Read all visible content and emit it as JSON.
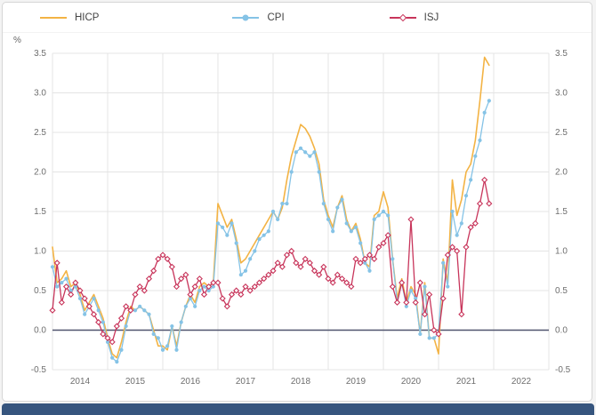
{
  "panel": {
    "background": "#ffffff",
    "border_color": "#d6d6d6",
    "bottom_bar_color": "#36557e"
  },
  "legend": {
    "items": [
      {
        "label": "HICP",
        "color": "#f3b344",
        "marker": "line"
      },
      {
        "label": "CPI",
        "color": "#85c3e6",
        "marker": "circle"
      },
      {
        "label": "ISJ",
        "color": "#c8355b",
        "marker": "diamond"
      }
    ]
  },
  "chart_data": {
    "type": "line",
    "title": "",
    "xlabel": "",
    "ylabel": "%",
    "ylim": [
      -0.5,
      3.5
    ],
    "y_ticks": [
      3.5,
      3.0,
      2.5,
      2.0,
      1.5,
      1.0,
      0.5,
      0.0,
      -0.5
    ],
    "x_tick_labels": [
      "2014",
      "2015",
      "2016",
      "2017",
      "2018",
      "2019",
      "2020",
      "2021",
      "2022"
    ],
    "grid": true,
    "legend_position": "top",
    "zero_line_color": "#50546e",
    "grid_color": "#e4e4e4",
    "axis_text_color": "#6e6e6e",
    "months": [
      "2014-01",
      "2014-02",
      "2014-03",
      "2014-04",
      "2014-05",
      "2014-06",
      "2014-07",
      "2014-08",
      "2014-09",
      "2014-10",
      "2014-11",
      "2014-12",
      "2015-01",
      "2015-02",
      "2015-03",
      "2015-04",
      "2015-05",
      "2015-06",
      "2015-07",
      "2015-08",
      "2015-09",
      "2015-10",
      "2015-11",
      "2015-12",
      "2016-01",
      "2016-02",
      "2016-03",
      "2016-04",
      "2016-05",
      "2016-06",
      "2016-07",
      "2016-08",
      "2016-09",
      "2016-10",
      "2016-11",
      "2016-12",
      "2017-01",
      "2017-02",
      "2017-03",
      "2017-04",
      "2017-05",
      "2017-06",
      "2017-07",
      "2017-08",
      "2017-09",
      "2017-10",
      "2017-11",
      "2017-12",
      "2018-01",
      "2018-02",
      "2018-03",
      "2018-04",
      "2018-05",
      "2018-06",
      "2018-07",
      "2018-08",
      "2018-09",
      "2018-10",
      "2018-11",
      "2018-12",
      "2019-01",
      "2019-02",
      "2019-03",
      "2019-04",
      "2019-05",
      "2019-06",
      "2019-07",
      "2019-08",
      "2019-09",
      "2019-10",
      "2019-11",
      "2019-12",
      "2020-01",
      "2020-02",
      "2020-03",
      "2020-04",
      "2020-05",
      "2020-06",
      "2020-07",
      "2020-08",
      "2020-09",
      "2020-10",
      "2020-11",
      "2020-12",
      "2021-01",
      "2021-02",
      "2021-03",
      "2021-04",
      "2021-05",
      "2021-06",
      "2021-07",
      "2021-08",
      "2021-09",
      "2021-10",
      "2021-11",
      "2021-12"
    ],
    "series": [
      {
        "name": "HICP",
        "color": "#f3b344",
        "marker": "none",
        "values": [
          1.05,
          0.6,
          0.65,
          0.75,
          0.55,
          0.6,
          0.45,
          0.25,
          0.35,
          0.45,
          0.3,
          0.15,
          -0.1,
          -0.3,
          -0.35,
          -0.15,
          0.1,
          0.3,
          0.25,
          0.3,
          0.25,
          0.2,
          0.0,
          -0.2,
          -0.2,
          -0.25,
          0.05,
          -0.2,
          0.1,
          0.3,
          0.45,
          0.35,
          0.55,
          0.6,
          0.55,
          0.6,
          1.6,
          1.45,
          1.3,
          1.4,
          1.15,
          0.85,
          0.9,
          1.0,
          1.1,
          1.2,
          1.3,
          1.4,
          1.5,
          1.4,
          1.55,
          1.9,
          2.2,
          2.4,
          2.6,
          2.55,
          2.45,
          2.3,
          2.1,
          1.65,
          1.45,
          1.3,
          1.55,
          1.7,
          1.4,
          1.25,
          1.35,
          1.15,
          0.85,
          0.8,
          1.45,
          1.5,
          1.75,
          1.55,
          0.9,
          0.4,
          0.65,
          0.35,
          0.55,
          0.45,
          -0.05,
          0.6,
          -0.1,
          -0.1,
          -0.3,
          0.9,
          0.6,
          1.9,
          1.45,
          1.65,
          2.0,
          2.1,
          2.4,
          2.9,
          3.45,
          3.35
        ]
      },
      {
        "name": "CPI",
        "color": "#85c3e6",
        "marker": "circle",
        "values": [
          0.8,
          0.55,
          0.6,
          0.65,
          0.5,
          0.55,
          0.4,
          0.2,
          0.3,
          0.4,
          0.25,
          0.1,
          -0.15,
          -0.35,
          -0.4,
          -0.25,
          0.05,
          0.25,
          0.25,
          0.3,
          0.25,
          0.2,
          -0.05,
          -0.1,
          -0.25,
          -0.2,
          0.05,
          -0.25,
          0.1,
          0.3,
          0.4,
          0.3,
          0.5,
          0.55,
          0.5,
          0.55,
          1.35,
          1.3,
          1.2,
          1.35,
          1.1,
          0.7,
          0.75,
          0.9,
          1.0,
          1.15,
          1.2,
          1.25,
          1.5,
          1.4,
          1.6,
          1.6,
          2.0,
          2.25,
          2.3,
          2.25,
          2.2,
          2.25,
          2.0,
          1.6,
          1.4,
          1.25,
          1.55,
          1.65,
          1.35,
          1.25,
          1.3,
          1.1,
          0.85,
          0.75,
          1.4,
          1.45,
          1.5,
          1.45,
          0.9,
          0.35,
          0.6,
          0.3,
          0.5,
          0.4,
          -0.05,
          0.55,
          -0.1,
          -0.1,
          -0.05,
          0.85,
          0.55,
          1.5,
          1.2,
          1.35,
          1.7,
          1.9,
          2.2,
          2.4,
          2.75,
          2.9
        ]
      },
      {
        "name": "ISJ",
        "color": "#c8355b",
        "marker": "diamond",
        "values": [
          0.25,
          0.85,
          0.35,
          0.55,
          0.45,
          0.6,
          0.5,
          0.4,
          0.3,
          0.2,
          0.1,
          -0.05,
          -0.1,
          -0.15,
          0.05,
          0.15,
          0.3,
          0.25,
          0.45,
          0.55,
          0.5,
          0.65,
          0.75,
          0.9,
          0.95,
          0.9,
          0.8,
          0.55,
          0.65,
          0.7,
          0.45,
          0.55,
          0.65,
          0.45,
          0.55,
          0.6,
          0.6,
          0.4,
          0.3,
          0.45,
          0.5,
          0.45,
          0.55,
          0.5,
          0.55,
          0.6,
          0.65,
          0.7,
          0.75,
          0.85,
          0.8,
          0.95,
          1.0,
          0.85,
          0.8,
          0.9,
          0.85,
          0.75,
          0.7,
          0.8,
          0.65,
          0.6,
          0.7,
          0.65,
          0.6,
          0.55,
          0.9,
          0.85,
          0.9,
          0.95,
          0.9,
          1.05,
          1.1,
          1.2,
          0.55,
          0.35,
          0.6,
          0.35,
          1.4,
          0.35,
          0.6,
          0.2,
          0.45,
          0.0,
          -0.05,
          0.4,
          0.95,
          1.05,
          1.0,
          0.2,
          1.05,
          1.3,
          1.35,
          1.6,
          1.9,
          1.6
        ]
      }
    ]
  }
}
